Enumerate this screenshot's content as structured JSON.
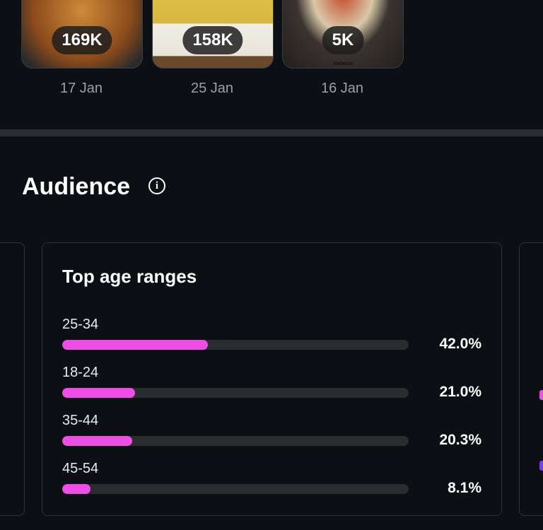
{
  "videos": [
    {
      "views": "169K",
      "date": "17 Jan"
    },
    {
      "views": "158K",
      "date": "25 Jan"
    },
    {
      "views": "5K",
      "date": "16 Jan",
      "caption": "Malacca"
    }
  ],
  "audience": {
    "heading": "Audience",
    "age_card": {
      "title": "Top age ranges",
      "ranges": [
        {
          "label": "25-34",
          "value": 42.0,
          "value_label": "42.0%"
        },
        {
          "label": "18-24",
          "value": 21.0,
          "value_label": "21.0%"
        },
        {
          "label": "35-44",
          "value": 20.3,
          "value_label": "20.3%"
        },
        {
          "label": "45-54",
          "value": 8.1,
          "value_label": "8.1%"
        }
      ]
    }
  }
}
